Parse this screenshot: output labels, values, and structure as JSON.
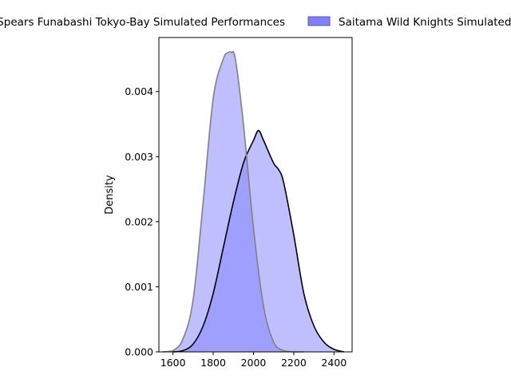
{
  "chart_data": {
    "type": "area",
    "title": "",
    "xlabel": "",
    "ylabel": "Density",
    "xlim": [
      1530,
      2490
    ],
    "ylim": [
      0,
      0.00483
    ],
    "xticks": [
      1600,
      1800,
      2000,
      2200,
      2400
    ],
    "yticks": [
      0.0,
      0.001,
      0.002,
      0.003,
      0.004
    ],
    "ytick_labels": [
      "0.000",
      "0.001",
      "0.002",
      "0.003",
      "0.004"
    ],
    "legend_position": "top, outside plot",
    "grid": false,
    "series": [
      {
        "name": "Chiba Jets Spears Funabashi Tokyo-Bay Simulated Performances",
        "fill": "#8080ff",
        "fill_opacity": 0.5,
        "edge": "#000000",
        "x": [
          1600,
          1650,
          1700,
          1750,
          1800,
          1850,
          1900,
          1950,
          2000,
          2025,
          2050,
          2100,
          2125,
          2150,
          2200,
          2250,
          2300,
          2350,
          2400,
          2450
        ],
        "y": [
          0.0,
          2e-05,
          0.00012,
          0.0004,
          0.0009,
          0.0016,
          0.0023,
          0.0029,
          0.00325,
          0.0034,
          0.00325,
          0.0029,
          0.0028,
          0.0026,
          0.0018,
          0.0009,
          0.0004,
          0.00015,
          4e-05,
          0.0
        ]
      },
      {
        "name": "Saitama Wild Knights Simulated Performances",
        "fill": "#8080ff",
        "fill_opacity": 0.5,
        "edge": "#808080",
        "x": [
          1550,
          1600,
          1650,
          1700,
          1750,
          1800,
          1850,
          1875,
          1890,
          1910,
          1950,
          2000,
          2050,
          2100,
          2150,
          2200,
          2250
        ],
        "y": [
          0.0,
          2e-05,
          0.0002,
          0.0008,
          0.0023,
          0.0039,
          0.0045,
          0.0046,
          0.0046,
          0.0045,
          0.0035,
          0.0019,
          0.0007,
          0.00015,
          2e-05,
          0.0,
          0.0
        ]
      }
    ]
  }
}
